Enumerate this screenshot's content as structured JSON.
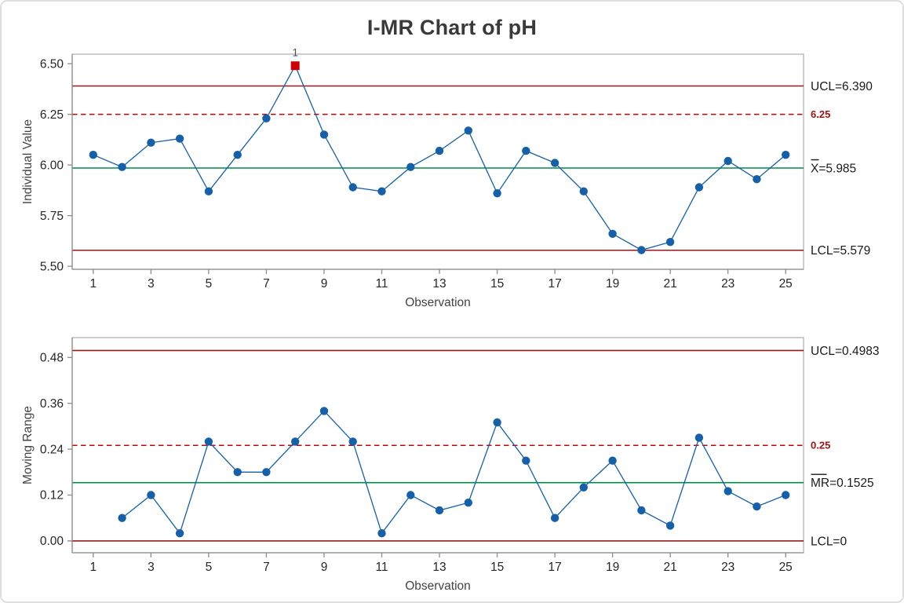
{
  "title": "I-MR Chart of pH",
  "colors": {
    "point_blue": "#1560a8",
    "line_blue": "#1560a8",
    "center_green": "#008c46",
    "limit_dark_red": "#97191c",
    "spec_red": "#c00505",
    "out_of_control_red": "#d00000",
    "title_text": "#3a3a3a",
    "axis_title_text": "#434343",
    "tick_text": "#262626",
    "annotation_text": "#1a1a1a",
    "annotation_red": "#a01313",
    "axis_line_gray": "#8c8c8c",
    "plot_border_gray": "#adadad",
    "ooc_label_gray": "#4d4d4d"
  },
  "chart_data": [
    {
      "type": "line",
      "name": "individuals-chart",
      "xlabel": "Observation",
      "ylabel": "Individual Value",
      "x": [
        1,
        2,
        3,
        4,
        5,
        6,
        7,
        8,
        9,
        10,
        11,
        12,
        13,
        14,
        15,
        16,
        17,
        18,
        19,
        20,
        21,
        22,
        23,
        24,
        25
      ],
      "values": [
        6.05,
        5.99,
        6.11,
        6.13,
        5.87,
        6.05,
        6.23,
        6.49,
        6.15,
        5.89,
        5.87,
        5.99,
        6.07,
        6.17,
        5.86,
        6.07,
        6.01,
        5.87,
        5.66,
        5.58,
        5.62,
        5.89,
        6.02,
        5.93,
        6.05
      ],
      "out_of_control_points": [
        {
          "x": 8,
          "y": 6.49,
          "label": "1"
        }
      ],
      "ucl": {
        "value": 6.39,
        "label": "UCL=6.390"
      },
      "center": {
        "value": 5.985,
        "label": "X=5.985",
        "overline": "X"
      },
      "lcl": {
        "value": 5.579,
        "label": "LCL=5.579"
      },
      "spec_line": {
        "value": 6.25,
        "label": "6.25"
      },
      "yticks": [
        5.5,
        5.75,
        6.0,
        6.25,
        6.5
      ],
      "ytick_labels": [
        "5.50",
        "5.75",
        "6.00",
        "6.25",
        "6.50"
      ],
      "xticks": [
        1,
        3,
        5,
        7,
        9,
        11,
        13,
        15,
        17,
        19,
        21,
        23,
        25
      ],
      "ylim": [
        5.485,
        6.547
      ],
      "xlim": [
        0.27,
        25.62
      ],
      "grid": false,
      "legend": "none"
    },
    {
      "type": "line",
      "name": "moving-range-chart",
      "xlabel": "Observation",
      "ylabel": "Moving Range",
      "x": [
        2,
        3,
        4,
        5,
        6,
        7,
        8,
        9,
        10,
        11,
        12,
        13,
        14,
        15,
        16,
        17,
        18,
        19,
        20,
        21,
        22,
        23,
        24,
        25
      ],
      "values": [
        0.06,
        0.12,
        0.02,
        0.26,
        0.18,
        0.18,
        0.26,
        0.34,
        0.26,
        0.02,
        0.12,
        0.08,
        0.1,
        0.31,
        0.21,
        0.06,
        0.14,
        0.21,
        0.08,
        0.04,
        0.27,
        0.13,
        0.09,
        0.12
      ],
      "out_of_control_points": [],
      "ucl": {
        "value": 0.4983,
        "label": "UCL=0.4983"
      },
      "center": {
        "value": 0.1525,
        "label": "MR=0.1525",
        "overline": "MR"
      },
      "lcl": {
        "value": 0,
        "label": "LCL=0"
      },
      "spec_line": {
        "value": 0.25,
        "label": "0.25"
      },
      "yticks": [
        0.0,
        0.12,
        0.24,
        0.36,
        0.48
      ],
      "ytick_labels": [
        "0.00",
        "0.12",
        "0.24",
        "0.36",
        "0.48"
      ],
      "xticks": [
        1,
        3,
        5,
        7,
        9,
        11,
        13,
        15,
        17,
        19,
        21,
        23,
        25
      ],
      "ylim": [
        -0.031,
        0.532
      ],
      "xlim": [
        0.27,
        25.62
      ],
      "grid": false,
      "legend": "none"
    }
  ]
}
